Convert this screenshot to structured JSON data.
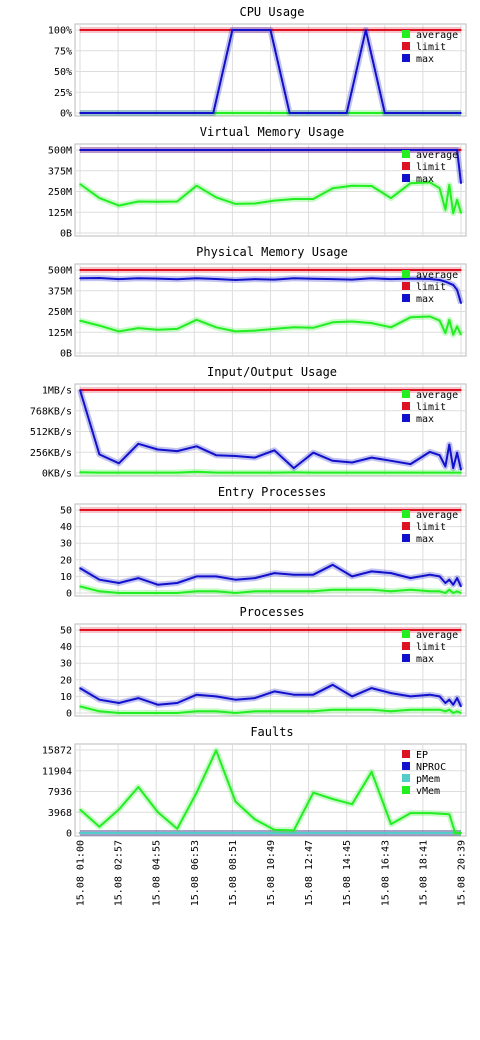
{
  "x_ticks": [
    "15.08 01:00",
    "15.08 02:57",
    "15.08 04:55",
    "15.08 06:53",
    "15.08 08:51",
    "15.08 10:49",
    "15.08 12:47",
    "15.08 14:45",
    "15.08 16:43",
    "15.08 18:41",
    "15.08 20:39"
  ],
  "colors": {
    "average": "#22ee22",
    "limit": "#dd1122",
    "max": "#1111cc",
    "ep": "#dd1122",
    "nproc": "#1111cc",
    "pmem": "#55cccc",
    "vmem": "#22ee22"
  },
  "chart_data": [
    {
      "type": "line",
      "title": "CPU Usage",
      "ylim": [
        0,
        100
      ],
      "y_ticks": [
        "100%",
        "75%",
        "50%",
        "25%",
        "0%"
      ],
      "y_tick_values": [
        100,
        75,
        50,
        25,
        0
      ],
      "x": [
        0,
        1,
        2,
        3,
        4,
        5,
        6,
        7,
        8,
        9,
        10,
        11,
        12,
        13,
        14,
        15,
        16,
        17,
        18,
        19,
        20
      ],
      "grid": true,
      "legend": "top-right",
      "series": [
        {
          "name": "average",
          "color_key": "average",
          "values": [
            0,
            0,
            0,
            0,
            0,
            0,
            0,
            0,
            0,
            0,
            0,
            0,
            0,
            0,
            0,
            0,
            0,
            0,
            0,
            0,
            0
          ]
        },
        {
          "name": "limit",
          "color_key": "limit",
          "values": [
            100,
            100,
            100,
            100,
            100,
            100,
            100,
            100,
            100,
            100,
            100,
            100,
            100,
            100,
            100,
            100,
            100,
            100,
            100,
            100,
            100
          ]
        },
        {
          "name": "max",
          "color_key": "max",
          "values": [
            0,
            0,
            0,
            0,
            0,
            0,
            0,
            0,
            100,
            100,
            100,
            0,
            0,
            0,
            0,
            100,
            0,
            0,
            0,
            0,
            0
          ]
        }
      ]
    },
    {
      "type": "line",
      "title": "Virtual Memory Usage",
      "ylim": [
        0,
        500
      ],
      "y_ticks": [
        "500M",
        "375M",
        "250M",
        "125M",
        "0B"
      ],
      "y_tick_values": [
        500,
        375,
        250,
        125,
        0
      ],
      "x": [
        0,
        1,
        2,
        3,
        4,
        5,
        6,
        7,
        8,
        9,
        10,
        11,
        12,
        13,
        14,
        15,
        16,
        17,
        18,
        18.5,
        18.8,
        19,
        19.2,
        19.4,
        19.6
      ],
      "grid": true,
      "legend": "top-right",
      "series": [
        {
          "name": "average",
          "color_key": "average",
          "values": [
            295,
            210,
            165,
            190,
            188,
            190,
            285,
            215,
            175,
            178,
            195,
            205,
            205,
            270,
            285,
            283,
            210,
            300,
            305,
            270,
            140,
            290,
            120,
            200,
            120
          ]
        },
        {
          "name": "limit",
          "color_key": "limit",
          "values": [
            500,
            500,
            500,
            500,
            500,
            500,
            500,
            500,
            500,
            500,
            500,
            500,
            500,
            500,
            500,
            500,
            500,
            500,
            500,
            500,
            500,
            500,
            500,
            500,
            500
          ]
        },
        {
          "name": "max",
          "color_key": "max",
          "values": [
            500,
            500,
            500,
            500,
            500,
            500,
            500,
            500,
            500,
            500,
            500,
            500,
            500,
            500,
            500,
            500,
            500,
            500,
            500,
            500,
            500,
            500,
            500,
            500,
            300
          ]
        }
      ]
    },
    {
      "type": "line",
      "title": "Physical Memory Usage",
      "ylim": [
        0,
        500
      ],
      "y_ticks": [
        "500M",
        "375M",
        "250M",
        "125M",
        "0B"
      ],
      "y_tick_values": [
        500,
        375,
        250,
        125,
        0
      ],
      "x": [
        0,
        1,
        2,
        3,
        4,
        5,
        6,
        7,
        8,
        9,
        10,
        11,
        12,
        13,
        14,
        15,
        16,
        17,
        18,
        18.5,
        18.8,
        19,
        19.2,
        19.4,
        19.6
      ],
      "grid": true,
      "legend": "top-right",
      "series": [
        {
          "name": "average",
          "color_key": "average",
          "values": [
            195,
            165,
            130,
            150,
            140,
            145,
            200,
            155,
            130,
            135,
            145,
            155,
            152,
            185,
            190,
            180,
            155,
            215,
            220,
            195,
            120,
            200,
            110,
            160,
            110
          ]
        },
        {
          "name": "limit",
          "color_key": "limit",
          "values": [
            500,
            500,
            500,
            500,
            500,
            500,
            500,
            500,
            500,
            500,
            500,
            500,
            500,
            500,
            500,
            500,
            500,
            500,
            500,
            500,
            500,
            500,
            500,
            500,
            500
          ]
        },
        {
          "name": "max",
          "color_key": "max",
          "values": [
            450,
            452,
            445,
            450,
            448,
            444,
            450,
            446,
            440,
            445,
            442,
            450,
            447,
            445,
            442,
            450,
            445,
            448,
            446,
            440,
            430,
            420,
            410,
            380,
            300
          ]
        }
      ]
    },
    {
      "type": "line",
      "title": "Input/Output Usage",
      "ylim": [
        0,
        1024
      ],
      "y_ticks": [
        "1MB/s",
        "768KB/s",
        "512KB/s",
        "256KB/s",
        "0KB/s"
      ],
      "y_tick_values": [
        1024,
        768,
        512,
        256,
        0
      ],
      "x": [
        0,
        1,
        2,
        3,
        4,
        5,
        6,
        7,
        8,
        9,
        10,
        11,
        12,
        13,
        14,
        15,
        16,
        17,
        18,
        18.5,
        18.8,
        19,
        19.2,
        19.4,
        19.6
      ],
      "grid": true,
      "legend": "top-right",
      "series": [
        {
          "name": "average",
          "color_key": "average",
          "values": [
            10,
            5,
            5,
            5,
            5,
            5,
            15,
            5,
            5,
            5,
            5,
            8,
            5,
            5,
            5,
            5,
            5,
            5,
            5,
            5,
            5,
            5,
            5,
            5,
            5
          ]
        },
        {
          "name": "limit",
          "color_key": "limit",
          "values": [
            1024,
            1024,
            1024,
            1024,
            1024,
            1024,
            1024,
            1024,
            1024,
            1024,
            1024,
            1024,
            1024,
            1024,
            1024,
            1024,
            1024,
            1024,
            1024,
            1024,
            1024,
            1024,
            1024,
            1024,
            1024
          ]
        },
        {
          "name": "max",
          "color_key": "max",
          "values": [
            1024,
            230,
            120,
            360,
            290,
            270,
            330,
            220,
            210,
            190,
            280,
            60,
            250,
            150,
            130,
            190,
            150,
            110,
            260,
            220,
            80,
            350,
            60,
            250,
            40
          ]
        }
      ]
    },
    {
      "type": "line",
      "title": "Entry Processes",
      "ylim": [
        0,
        50
      ],
      "y_ticks": [
        "50",
        "40",
        "30",
        "20",
        "10",
        "0"
      ],
      "y_tick_values": [
        50,
        40,
        30,
        20,
        10,
        0
      ],
      "x": [
        0,
        1,
        2,
        3,
        4,
        5,
        6,
        7,
        8,
        9,
        10,
        11,
        12,
        13,
        14,
        15,
        16,
        17,
        18,
        18.5,
        18.8,
        19,
        19.2,
        19.4,
        19.6
      ],
      "grid": true,
      "legend": "top-right",
      "series": [
        {
          "name": "average",
          "color_key": "average",
          "values": [
            4,
            1,
            0,
            0,
            0,
            0,
            1,
            1,
            0,
            1,
            1,
            1,
            1,
            2,
            2,
            2,
            1,
            2,
            1,
            1,
            0,
            2,
            0,
            1,
            0
          ]
        },
        {
          "name": "limit",
          "color_key": "limit",
          "values": [
            50,
            50,
            50,
            50,
            50,
            50,
            50,
            50,
            50,
            50,
            50,
            50,
            50,
            50,
            50,
            50,
            50,
            50,
            50,
            50,
            50,
            50,
            50,
            50,
            50
          ]
        },
        {
          "name": "max",
          "color_key": "max",
          "values": [
            15,
            8,
            6,
            9,
            5,
            6,
            10,
            10,
            8,
            9,
            12,
            11,
            11,
            17,
            10,
            13,
            12,
            9,
            11,
            10,
            6,
            8,
            5,
            9,
            4
          ]
        }
      ]
    },
    {
      "type": "line",
      "title": "Processes",
      "ylim": [
        0,
        50
      ],
      "y_ticks": [
        "50",
        "40",
        "30",
        "20",
        "10",
        "0"
      ],
      "y_tick_values": [
        50,
        40,
        30,
        20,
        10,
        0
      ],
      "x": [
        0,
        1,
        2,
        3,
        4,
        5,
        6,
        7,
        8,
        9,
        10,
        11,
        12,
        13,
        14,
        15,
        16,
        17,
        18,
        18.5,
        18.8,
        19,
        19.2,
        19.4,
        19.6
      ],
      "grid": true,
      "legend": "top-right",
      "series": [
        {
          "name": "average",
          "color_key": "average",
          "values": [
            4,
            1,
            0,
            0,
            0,
            0,
            1,
            1,
            0,
            1,
            1,
            1,
            1,
            2,
            2,
            2,
            1,
            2,
            2,
            2,
            1,
            2,
            0,
            1,
            0
          ]
        },
        {
          "name": "limit",
          "color_key": "limit",
          "values": [
            50,
            50,
            50,
            50,
            50,
            50,
            50,
            50,
            50,
            50,
            50,
            50,
            50,
            50,
            50,
            50,
            50,
            50,
            50,
            50,
            50,
            50,
            50,
            50,
            50
          ]
        },
        {
          "name": "max",
          "color_key": "max",
          "values": [
            15,
            8,
            6,
            9,
            5,
            6,
            11,
            10,
            8,
            9,
            13,
            11,
            11,
            17,
            10,
            15,
            12,
            10,
            11,
            10,
            6,
            8,
            5,
            9,
            4
          ]
        }
      ]
    },
    {
      "type": "line",
      "title": "Faults",
      "ylim": [
        0,
        15872
      ],
      "y_ticks": [
        "15872",
        "11904",
        "7936",
        "3968",
        "0"
      ],
      "y_tick_values": [
        15872,
        11904,
        7936,
        3968,
        0
      ],
      "x": [
        0,
        1,
        2,
        3,
        4,
        5,
        6,
        7,
        8,
        9,
        10,
        11,
        12,
        13,
        14,
        15,
        16,
        17,
        18,
        19,
        19.3,
        19.6
      ],
      "grid": true,
      "legend": "top-right",
      "series": [
        {
          "name": "EP",
          "color_key": "ep",
          "values": [
            0,
            0,
            0,
            0,
            0,
            0,
            0,
            0,
            0,
            0,
            0,
            0,
            0,
            0,
            0,
            0,
            0,
            0,
            0,
            0,
            0,
            0
          ]
        },
        {
          "name": "NPROC",
          "color_key": "nproc",
          "values": [
            0,
            0,
            0,
            0,
            0,
            0,
            0,
            0,
            0,
            0,
            0,
            0,
            0,
            0,
            0,
            0,
            0,
            0,
            0,
            0,
            0,
            0
          ]
        },
        {
          "name": "pMem",
          "color_key": "pmem",
          "values": [
            0,
            0,
            0,
            0,
            0,
            0,
            0,
            0,
            0,
            0,
            0,
            0,
            0,
            0,
            0,
            0,
            0,
            0,
            0,
            0,
            0,
            0
          ]
        },
        {
          "name": "vMem",
          "color_key": "vmem",
          "values": [
            4500,
            1200,
            4500,
            8800,
            4000,
            800,
            7700,
            15800,
            6000,
            2600,
            600,
            500,
            7700,
            6500,
            5500,
            11700,
            1700,
            3800,
            3800,
            3600,
            0,
            0
          ]
        }
      ]
    }
  ]
}
